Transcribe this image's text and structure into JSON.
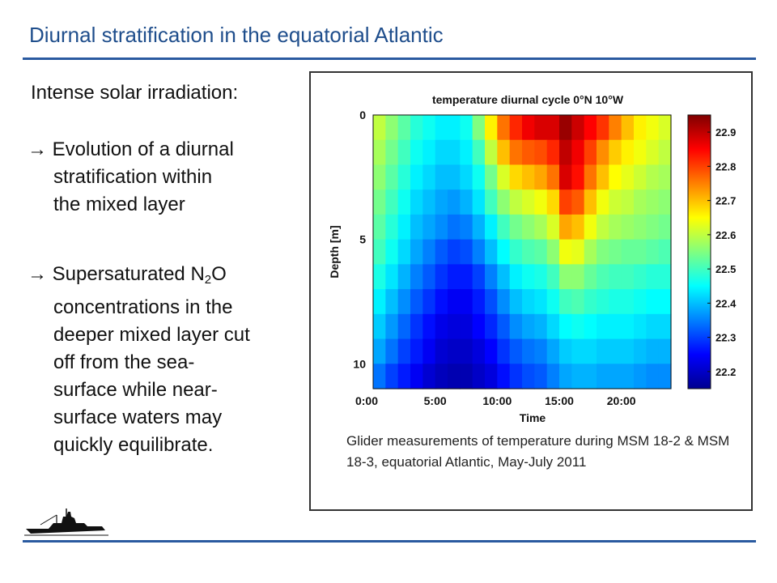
{
  "slide": {
    "title": "Diurnal stratification in the equatorial Atlantic",
    "heading": "Intense solar irradiation:",
    "bullet1": {
      "arrow": "→",
      "lines": [
        "Evolution of a diurnal",
        "stratification within",
        "the mixed layer"
      ]
    },
    "bullet2": {
      "arrow": "→",
      "first_pre": "Supersaturated N",
      "first_sub": "2",
      "first_post": "O",
      "lines": [
        "concentrations in the",
        "deeper mixed layer cut",
        "off from the sea-",
        "surface while near-",
        "surface waters may",
        "quickly equilibrate."
      ]
    },
    "caption": "Glider measurements of temperature during MSM 18-2 & MSM 18-3, equatorial Atlantic, May-July 2011",
    "logo_icon": "research-ship-icon"
  },
  "chart_data": {
    "type": "heatmap",
    "title": "temperature diurnal cycle 0°N 10°W",
    "xlabel": "Time",
    "ylabel": "Depth [m]",
    "xlim": [
      0,
      24
    ],
    "ylim": [
      11,
      0
    ],
    "x_ticks": [
      {
        "value": 0,
        "label": "0:00"
      },
      {
        "value": 5,
        "label": "5:00"
      },
      {
        "value": 10,
        "label": "10:00"
      },
      {
        "value": 15,
        "label": "15:00"
      },
      {
        "value": 20,
        "label": "20:00"
      }
    ],
    "y_ticks": [
      {
        "value": 0,
        "label": "0"
      },
      {
        "value": 5,
        "label": "5"
      },
      {
        "value": 10,
        "label": "10"
      }
    ],
    "colorbar": {
      "min": 22.15,
      "max": 22.95,
      "ticks": [
        "22.2",
        "22.3",
        "22.4",
        "22.5",
        "22.6",
        "22.7",
        "22.8",
        "22.9"
      ],
      "colors": [
        "#00008f",
        "#0000ff",
        "#0080ff",
        "#00ffff",
        "#80ff80",
        "#ffff00",
        "#ff8000",
        "#ff0000",
        "#800000"
      ]
    },
    "hours": [
      0,
      1,
      2,
      3,
      4,
      5,
      6,
      7,
      8,
      9,
      10,
      11,
      12,
      13,
      14,
      15,
      16,
      17,
      18,
      19,
      20,
      21,
      22,
      23
    ],
    "depths": [
      0,
      1,
      2,
      3,
      4,
      5,
      6,
      7,
      8,
      9,
      10
    ],
    "values": [
      [
        22.6,
        22.56,
        22.52,
        22.48,
        22.46,
        22.44,
        22.44,
        22.46,
        22.55,
        22.66,
        22.76,
        22.82,
        22.86,
        22.88,
        22.88,
        22.93,
        22.89,
        22.85,
        22.81,
        22.75,
        22.7,
        22.66,
        22.64,
        22.62
      ],
      [
        22.58,
        22.54,
        22.5,
        22.46,
        22.44,
        22.42,
        22.42,
        22.44,
        22.5,
        22.6,
        22.7,
        22.76,
        22.78,
        22.79,
        22.82,
        22.9,
        22.86,
        22.8,
        22.74,
        22.69,
        22.66,
        22.64,
        22.62,
        22.6
      ],
      [
        22.56,
        22.52,
        22.48,
        22.44,
        22.42,
        22.4,
        22.4,
        22.42,
        22.46,
        22.54,
        22.62,
        22.68,
        22.7,
        22.72,
        22.76,
        22.88,
        22.84,
        22.76,
        22.7,
        22.65,
        22.63,
        22.61,
        22.59,
        22.58
      ],
      [
        22.54,
        22.5,
        22.46,
        22.42,
        22.4,
        22.38,
        22.37,
        22.39,
        22.43,
        22.5,
        22.56,
        22.6,
        22.62,
        22.64,
        22.68,
        22.8,
        22.78,
        22.7,
        22.64,
        22.61,
        22.6,
        22.58,
        22.57,
        22.56
      ],
      [
        22.52,
        22.48,
        22.44,
        22.4,
        22.38,
        22.36,
        22.34,
        22.35,
        22.39,
        22.44,
        22.5,
        22.54,
        22.56,
        22.58,
        22.62,
        22.72,
        22.7,
        22.64,
        22.6,
        22.58,
        22.57,
        22.56,
        22.55,
        22.54
      ],
      [
        22.5,
        22.46,
        22.42,
        22.38,
        22.35,
        22.32,
        22.3,
        22.31,
        22.35,
        22.4,
        22.45,
        22.49,
        22.51,
        22.52,
        22.56,
        22.64,
        22.63,
        22.58,
        22.55,
        22.54,
        22.53,
        22.53,
        22.52,
        22.51
      ],
      [
        22.47,
        22.43,
        22.39,
        22.35,
        22.32,
        22.29,
        22.27,
        22.27,
        22.3,
        22.35,
        22.4,
        22.44,
        22.46,
        22.47,
        22.5,
        22.56,
        22.56,
        22.53,
        22.51,
        22.5,
        22.5,
        22.49,
        22.48,
        22.48
      ],
      [
        22.44,
        22.4,
        22.36,
        22.32,
        22.29,
        22.26,
        22.24,
        22.24,
        22.27,
        22.31,
        22.36,
        22.4,
        22.42,
        22.43,
        22.46,
        22.5,
        22.51,
        22.49,
        22.48,
        22.47,
        22.47,
        22.46,
        22.45,
        22.45
      ],
      [
        22.41,
        22.37,
        22.33,
        22.29,
        22.26,
        22.23,
        22.22,
        22.22,
        22.25,
        22.28,
        22.32,
        22.36,
        22.38,
        22.39,
        22.42,
        22.45,
        22.46,
        22.45,
        22.44,
        22.44,
        22.44,
        22.43,
        22.42,
        22.42
      ],
      [
        22.38,
        22.34,
        22.3,
        22.27,
        22.24,
        22.21,
        22.2,
        22.2,
        22.22,
        22.25,
        22.29,
        22.32,
        22.34,
        22.35,
        22.38,
        22.41,
        22.42,
        22.42,
        22.41,
        22.41,
        22.41,
        22.4,
        22.39,
        22.39
      ],
      [
        22.34,
        22.3,
        22.27,
        22.24,
        22.21,
        22.19,
        22.18,
        22.18,
        22.2,
        22.22,
        22.26,
        22.29,
        22.31,
        22.32,
        22.35,
        22.38,
        22.39,
        22.39,
        22.38,
        22.38,
        22.38,
        22.37,
        22.36,
        22.36
      ]
    ]
  }
}
